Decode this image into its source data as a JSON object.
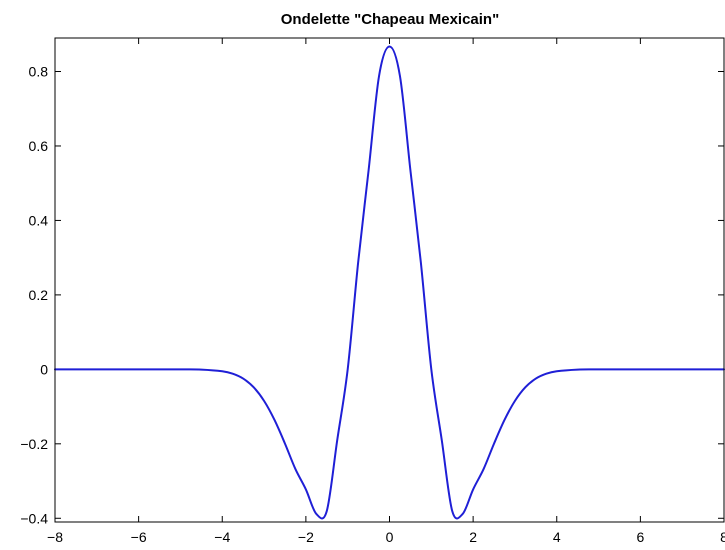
{
  "chart_data": {
    "type": "line",
    "title": "Ondelette \"Chapeau Mexicain\"",
    "xlabel": "",
    "ylabel": "",
    "xlim": [
      -8,
      8
    ],
    "ylim": [
      -0.41,
      0.89
    ],
    "x_ticks": [
      -8,
      -6,
      -4,
      -2,
      0,
      2,
      4,
      6,
      8
    ],
    "y_ticks": [
      -0.4,
      -0.2,
      0,
      0.2,
      0.4,
      0.6,
      0.8
    ],
    "x_tick_labels": [
      "−8",
      "−6",
      "−4",
      "−2",
      "0",
      "2",
      "4",
      "6",
      "8"
    ],
    "y_tick_labels": [
      "−0.4",
      "−0.2",
      "0",
      "0.2",
      "0.4",
      "0.6",
      "0.8"
    ],
    "grid": false,
    "legend": "none",
    "series": [
      {
        "color": "#1f1fd6",
        "x": [
          -8,
          -7,
          -6,
          -5,
          -4.5,
          -4,
          -3.75,
          -3.5,
          -3.25,
          -3,
          -2.75,
          -2.5,
          -2.25,
          -2,
          -1.75,
          -1.5,
          -1.25,
          -1,
          -0.75,
          -0.5,
          -0.25,
          0,
          0.25,
          0.5,
          0.75,
          1,
          1.25,
          1.5,
          1.75,
          2,
          2.25,
          2.5,
          2.75,
          3,
          3.25,
          3.5,
          3.75,
          4,
          4.5,
          5,
          6,
          7,
          8
        ],
        "y": [
          0,
          0,
          0,
          -0.0001,
          -0.0006,
          -0.0051,
          -0.0117,
          -0.0248,
          -0.048,
          -0.0847,
          -0.136,
          -0.1994,
          -0.2678,
          -0.3224,
          -0.3883,
          -0.3805,
          -0.19,
          0,
          0.287,
          0.5346,
          0.788,
          0.8673,
          0.788,
          0.5346,
          0.287,
          0,
          -0.19,
          -0.3805,
          -0.3883,
          -0.3224,
          -0.2678,
          -0.1994,
          -0.136,
          -0.0847,
          -0.048,
          -0.0248,
          -0.0117,
          -0.0051,
          -0.0006,
          -0.0001,
          0,
          0,
          0
        ]
      }
    ]
  }
}
